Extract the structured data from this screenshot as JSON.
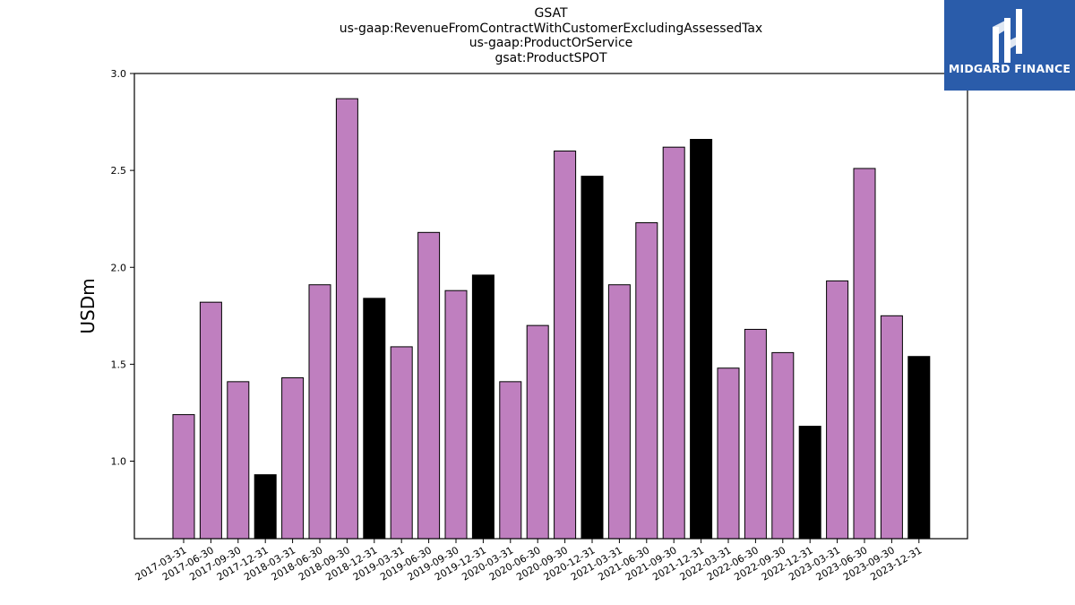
{
  "titles": [
    "GSAT",
    "us-gaap:RevenueFromContractWithCustomerExcludingAssessedTax",
    "us-gaap:ProductOrService",
    "gsat:ProductSPOT"
  ],
  "logo": {
    "text": "MIDGARD FINANCE",
    "icon": "midgard-logo-icon",
    "bg_color": "#2a5caa"
  },
  "chart_data": {
    "type": "bar",
    "ylabel": "USDm",
    "xlabel": "",
    "ylim": [
      0.6,
      3.0
    ],
    "yticks": [
      1.0,
      1.5,
      2.0,
      2.5,
      3.0
    ],
    "ytick_labels": [
      "1.0",
      "1.5",
      "2.0",
      "2.5",
      "3.0"
    ],
    "colors": {
      "quarter": "#bf7fbf",
      "year_end": "#000000",
      "edge": "#000000"
    },
    "categories": [
      "2017-03-31",
      "2017-06-30",
      "2017-09-30",
      "2017-12-31",
      "2018-03-31",
      "2018-06-30",
      "2018-09-30",
      "2018-12-31",
      "2019-03-31",
      "2019-06-30",
      "2019-09-30",
      "2019-12-31",
      "2020-03-31",
      "2020-06-30",
      "2020-09-30",
      "2020-12-31",
      "2021-03-31",
      "2021-06-30",
      "2021-09-30",
      "2021-12-31",
      "2022-03-31",
      "2022-06-30",
      "2022-09-30",
      "2022-12-31",
      "2023-03-31",
      "2023-06-30",
      "2023-09-30",
      "2023-12-31"
    ],
    "values": [
      1.24,
      1.82,
      1.41,
      0.93,
      1.43,
      1.91,
      2.87,
      1.84,
      1.59,
      2.18,
      1.88,
      1.96,
      1.41,
      1.7,
      2.6,
      2.47,
      1.91,
      2.23,
      2.62,
      2.66,
      1.48,
      1.68,
      1.56,
      1.18,
      1.93,
      2.51,
      1.75,
      1.54
    ],
    "grid": false,
    "legend": "none"
  }
}
